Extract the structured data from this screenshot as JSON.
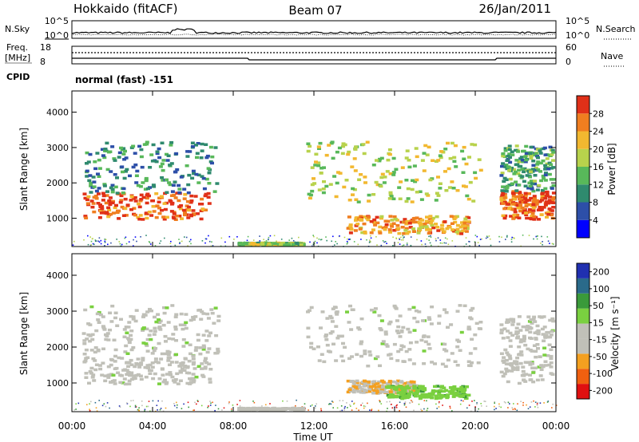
{
  "header": {
    "radar": "Hokkaido (fitACF)",
    "beam": "Beam 07",
    "date": "26/Jan/2011"
  },
  "top_panels": {
    "nsky_label": "N.Sky",
    "nsearch_label": "N.Search",
    "count_ticks": [
      "10^5",
      "10^0"
    ],
    "freq_label": "Freq.",
    "freq_unit": "[MHz]",
    "freq_ticks": [
      "18",
      "8"
    ],
    "nave_ticks": [
      "60",
      "0"
    ],
    "nave_label": "Nave",
    "cpid_label": "CPID",
    "cpid_value": "normal (fast) -151"
  },
  "chart_data": [
    {
      "type": "heatmap",
      "panel": "power",
      "ylabel": "Slant Range [km]",
      "xlabel": "",
      "xlim": [
        0,
        24
      ],
      "ylim": [
        200,
        4600
      ],
      "y_ticks": [
        1000,
        2000,
        3000,
        4000
      ],
      "colorbar": {
        "label": "Power [dB]",
        "range": [
          0,
          32
        ],
        "ticks": [
          "28",
          "24",
          "20",
          "16",
          "12",
          "8",
          "4"
        ],
        "colors": [
          "#0000ff",
          "#2d4fa8",
          "#2f8a6e",
          "#58b85a",
          "#b8d24c",
          "#f2b830",
          "#f07e20",
          "#e03018"
        ]
      },
      "regions": [
        {
          "t": [
            0.5,
            6.8
          ],
          "r": [
            1000,
            1750
          ],
          "value": 28
        },
        {
          "t": [
            0.5,
            7.2
          ],
          "r": [
            1750,
            3200
          ],
          "value": 10
        },
        {
          "t": [
            8.2,
            11.4
          ],
          "r": [
            280,
            340
          ],
          "value": 16
        },
        {
          "t": [
            11.6,
            20.2
          ],
          "r": [
            1500,
            3200
          ],
          "value": 18
        },
        {
          "t": [
            13.6,
            19.6
          ],
          "r": [
            600,
            1100
          ],
          "value": 24
        },
        {
          "t": [
            21.2,
            23.8
          ],
          "r": [
            1000,
            1800
          ],
          "value": 28
        },
        {
          "t": [
            21.2,
            23.8
          ],
          "r": [
            1800,
            3100
          ],
          "value": 12
        }
      ]
    },
    {
      "type": "heatmap",
      "panel": "velocity",
      "ylabel": "Slant Range [km]",
      "xlabel": "Time UT",
      "xlim": [
        0,
        24
      ],
      "ylim": [
        200,
        4600
      ],
      "y_ticks": [
        1000,
        2000,
        3000,
        4000
      ],
      "x_ticks": [
        "00:00",
        "04:00",
        "08:00",
        "12:00",
        "16:00",
        "20:00",
        "00:00"
      ],
      "colorbar": {
        "label": "Velocity [m s⁻¹]",
        "range": [
          -250,
          250
        ],
        "ticks": [
          "200",
          "100",
          "50",
          "15",
          "-15",
          "-50",
          "-100",
          "-200"
        ],
        "colors": [
          "#e01010",
          "#f06010",
          "#f4a020",
          "#c0c0b8",
          "#c0c0b8",
          "#7ad040",
          "#3a9a3a",
          "#2a6a8a",
          "#2030b0"
        ]
      },
      "regions": [
        {
          "t": [
            0.5,
            6.8
          ],
          "r": [
            1000,
            1750
          ],
          "value": 0
        },
        {
          "t": [
            0.5,
            7.2
          ],
          "r": [
            1750,
            3200
          ],
          "value": 5
        },
        {
          "t": [
            8.2,
            11.4
          ],
          "r": [
            280,
            340
          ],
          "value": -30
        },
        {
          "t": [
            11.6,
            20.2
          ],
          "r": [
            1500,
            3200
          ],
          "value": 0
        },
        {
          "t": [
            13.6,
            17.0
          ],
          "r": [
            750,
            1100
          ],
          "value": -80
        },
        {
          "t": [
            15.5,
            19.6
          ],
          "r": [
            600,
            950
          ],
          "value": 60
        },
        {
          "t": [
            21.2,
            23.8
          ],
          "r": [
            1000,
            2900
          ],
          "value": 0
        }
      ]
    }
  ]
}
